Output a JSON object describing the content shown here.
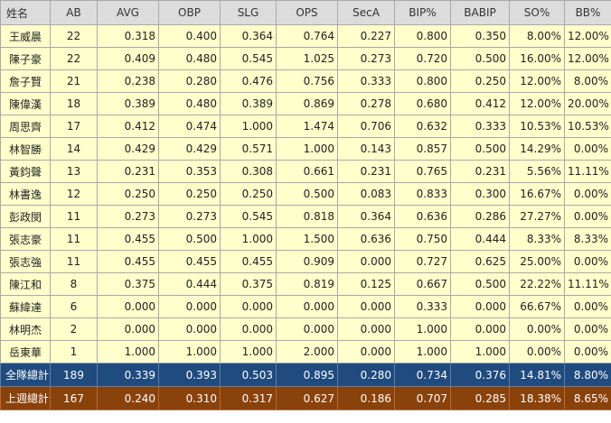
{
  "columns": [
    "姓名",
    "AB",
    "AVG",
    "OBP",
    "SLG",
    "OPS",
    "SecA",
    "BIP%",
    "BABIP",
    "SO%",
    "BB%"
  ],
  "players": [
    [
      "王威晨",
      "22",
      "0.318",
      "0.400",
      "0.364",
      "0.764",
      "0.227",
      "0.800",
      "0.350",
      "8.00%",
      "12.00%"
    ],
    [
      "陳子豪",
      "22",
      "0.409",
      "0.480",
      "0.545",
      "1.025",
      "0.273",
      "0.720",
      "0.500",
      "16.00%",
      "12.00%"
    ],
    [
      "詹子賢",
      "21",
      "0.238",
      "0.280",
      "0.476",
      "0.756",
      "0.333",
      "0.800",
      "0.250",
      "12.00%",
      "8.00%"
    ],
    [
      "陳偉漢",
      "18",
      "0.389",
      "0.480",
      "0.389",
      "0.869",
      "0.278",
      "0.680",
      "0.412",
      "12.00%",
      "20.00%"
    ],
    [
      "周思齊",
      "17",
      "0.412",
      "0.474",
      "1.000",
      "1.474",
      "0.706",
      "0.632",
      "0.333",
      "10.53%",
      "10.53%"
    ],
    [
      "林智勝",
      "14",
      "0.429",
      "0.429",
      "0.571",
      "1.000",
      "0.143",
      "0.857",
      "0.500",
      "14.29%",
      "0.00%"
    ],
    [
      "黃鈞聲",
      "13",
      "0.231",
      "0.353",
      "0.308",
      "0.661",
      "0.231",
      "0.765",
      "0.231",
      "5.56%",
      "11.11%"
    ],
    [
      "林書逸",
      "12",
      "0.250",
      "0.250",
      "0.250",
      "0.500",
      "0.083",
      "0.833",
      "0.300",
      "16.67%",
      "0.00%"
    ],
    [
      "彭政閔",
      "11",
      "0.273",
      "0.273",
      "0.545",
      "0.818",
      "0.364",
      "0.636",
      "0.286",
      "27.27%",
      "0.00%"
    ],
    [
      "張志豪",
      "11",
      "0.455",
      "0.500",
      "1.000",
      "1.500",
      "0.636",
      "0.750",
      "0.444",
      "8.33%",
      "8.33%"
    ],
    [
      "張志強",
      "11",
      "0.455",
      "0.455",
      "0.455",
      "0.909",
      "0.000",
      "0.727",
      "0.625",
      "25.00%",
      "0.00%"
    ],
    [
      "陳江和",
      "8",
      "0.375",
      "0.444",
      "0.375",
      "0.819",
      "0.125",
      "0.667",
      "0.500",
      "22.22%",
      "11.11%"
    ],
    [
      "蘇緯達",
      "6",
      "0.000",
      "0.000",
      "0.000",
      "0.000",
      "0.000",
      "0.333",
      "0.000",
      "66.67%",
      "0.00%"
    ],
    [
      "林明杰",
      "2",
      "0.000",
      "0.000",
      "0.000",
      "0.000",
      "0.000",
      "1.000",
      "0.000",
      "0.00%",
      "0.00%"
    ],
    [
      "岳東華",
      "1",
      "1.000",
      "1.000",
      "1.000",
      "2.000",
      "0.000",
      "1.000",
      "1.000",
      "0.00%",
      "0.00%"
    ]
  ],
  "totals": [
    {
      "key": "team-total",
      "cells": [
        "全隊總計",
        "189",
        "0.339",
        "0.393",
        "0.503",
        "0.895",
        "0.280",
        "0.734",
        "0.376",
        "14.81%",
        "8.80%"
      ],
      "color": "#1f4b7f"
    },
    {
      "key": "last-week",
      "cells": [
        "上週總計",
        "167",
        "0.240",
        "0.310",
        "0.317",
        "0.627",
        "0.186",
        "0.707",
        "0.285",
        "18.38%",
        "8.65%"
      ],
      "color": "#8a420b"
    }
  ],
  "colors": {
    "header_bg": "#dcdcdc",
    "row_bg": "#ffffcc",
    "border": "#a9a9a9"
  }
}
